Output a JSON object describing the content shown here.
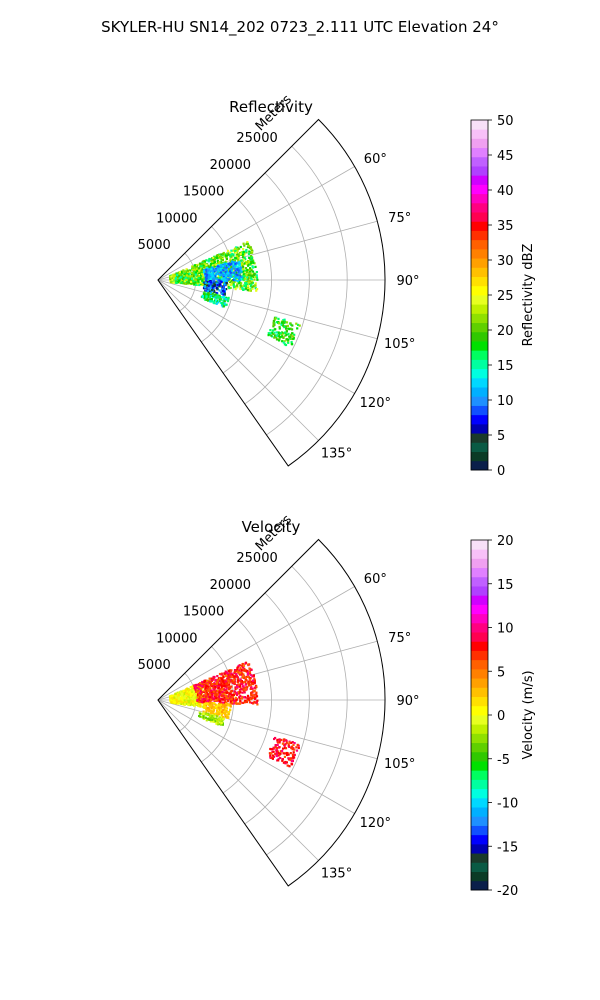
{
  "suptitle": "SKYLER-HU  SN14_202  0723_2.111 UTC Elevation 24°",
  "chart_data": [
    {
      "type": "heatmap",
      "subtype": "polar-sector-radar",
      "title": "Reflectivity",
      "radial_label": "Meters",
      "radial_ticks": [
        "5000",
        "10000",
        "15000",
        "20000",
        "25000"
      ],
      "radial_tick_values": [
        5000,
        10000,
        15000,
        20000,
        25000
      ],
      "rmax": 30000,
      "angle_ticks": [
        "60°",
        "75°",
        "90°",
        "105°",
        "120°",
        "135°"
      ],
      "angle_tick_values": [
        60,
        75,
        90,
        105,
        120,
        135
      ],
      "angle_range": [
        45,
        145
      ],
      "grid": true,
      "colorbar": {
        "label": "Reflectivity dBZ",
        "ticks": [
          "0",
          "5",
          "10",
          "15",
          "20",
          "25",
          "30",
          "35",
          "40",
          "45",
          "50"
        ],
        "range": [
          0,
          50
        ],
        "levels": 40,
        "colors": [
          "#0b1f4a",
          "#0b3b26",
          "#0a5a44",
          "#1a3a2a",
          "#0000b0",
          "#0000ff",
          "#1050ff",
          "#1e90ff",
          "#00b0ff",
          "#00d8ff",
          "#00ffe0",
          "#00ffa0",
          "#00ff60",
          "#00e000",
          "#30c800",
          "#60d000",
          "#90e000",
          "#c0f000",
          "#e8ff20",
          "#ffff00",
          "#ffe000",
          "#ffc000",
          "#ffa000",
          "#ff8000",
          "#ff6000",
          "#ff3000",
          "#ff0000",
          "#ff0050",
          "#ff0080",
          "#ff00c0",
          "#ff00ff",
          "#d000ff",
          "#b040ff",
          "#c060ff",
          "#e080ff",
          "#f0a0f0",
          "#f8c0f8",
          "#f8e0f8"
        ]
      },
      "echoes": [
        {
          "r": [
            1500,
            13000
          ],
          "theta": [
            66,
            96
          ],
          "value_range": [
            15,
            25
          ]
        },
        {
          "r": [
            6000,
            11000
          ],
          "theta": [
            75,
            90
          ],
          "value_range": [
            8,
            14
          ]
        },
        {
          "r": [
            6000,
            9000
          ],
          "theta": [
            90,
            102
          ],
          "value_range": [
            3,
            12
          ]
        },
        {
          "r": [
            6000,
            9500
          ],
          "theta": [
            103,
            112
          ],
          "value_range": [
            12,
            20
          ]
        },
        {
          "r": [
            16000,
            19500
          ],
          "theta": [
            107,
            117
          ],
          "value_range": [
            15,
            22
          ]
        }
      ]
    },
    {
      "type": "heatmap",
      "subtype": "polar-sector-radar",
      "title": "Velocity",
      "radial_label": "Meters",
      "radial_ticks": [
        "5000",
        "10000",
        "15000",
        "20000",
        "25000"
      ],
      "radial_tick_values": [
        5000,
        10000,
        15000,
        20000,
        25000
      ],
      "rmax": 30000,
      "angle_ticks": [
        "60°",
        "75°",
        "90°",
        "105°",
        "120°",
        "135°"
      ],
      "angle_tick_values": [
        60,
        75,
        90,
        105,
        120,
        135
      ],
      "angle_range": [
        45,
        145
      ],
      "grid": true,
      "colorbar": {
        "label": "Velocity (m/s)",
        "ticks": [
          "-20",
          "-15",
          "-10",
          "-5",
          "0",
          "5",
          "10",
          "15",
          "20"
        ],
        "range": [
          -20,
          20
        ],
        "levels": 40,
        "colors": [
          "#0b1f4a",
          "#0b3b26",
          "#0a5a44",
          "#1a3a2a",
          "#0000b0",
          "#0000ff",
          "#1050ff",
          "#1e90ff",
          "#00b0ff",
          "#00d8ff",
          "#00ffe0",
          "#00ffa0",
          "#00ff60",
          "#00e000",
          "#30c800",
          "#60d000",
          "#90e000",
          "#c0f000",
          "#e8ff20",
          "#ffff00",
          "#ffe000",
          "#ffc000",
          "#ffa000",
          "#ff8000",
          "#ff6000",
          "#ff3000",
          "#ff0000",
          "#ff0050",
          "#ff0080",
          "#ff00c0",
          "#ff00ff",
          "#d000ff",
          "#b040ff",
          "#c060ff",
          "#e080ff",
          "#f0a0f0",
          "#f8c0f8",
          "#f8e0f8"
        ]
      },
      "echoes": [
        {
          "r": [
            1500,
            6000
          ],
          "theta": [
            66,
            98
          ],
          "value_range": [
            -2,
            2
          ]
        },
        {
          "r": [
            5000,
            13000
          ],
          "theta": [
            66,
            92
          ],
          "value_range": [
            5,
            10
          ]
        },
        {
          "r": [
            6000,
            9500
          ],
          "theta": [
            92,
            104
          ],
          "value_range": [
            1,
            4
          ]
        },
        {
          "r": [
            5500,
            9000
          ],
          "theta": [
            104,
            112
          ],
          "value_range": [
            -4,
            0
          ]
        },
        {
          "r": [
            16000,
            19500
          ],
          "theta": [
            107,
            117
          ],
          "value_range": [
            6,
            10
          ]
        }
      ]
    }
  ]
}
